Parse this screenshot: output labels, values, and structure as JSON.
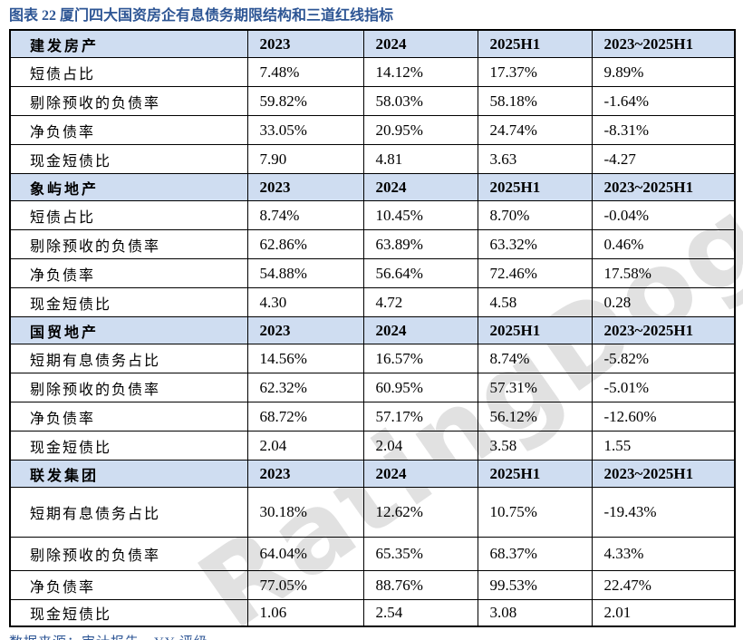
{
  "title": "图表 22 厦门四大国资房企有息债务期限结构和三道红线指标",
  "source_note": "数据来源：审计报告，YY 评级",
  "watermark": "RatingDog",
  "colors": {
    "title_blue": "#2e5695",
    "header_bg": "#cfddf1",
    "alert_red": "#ff0000",
    "border": "#000000",
    "watermark_gray": "#c9c9c9"
  },
  "table": {
    "year_columns": [
      "2023",
      "2024",
      "2025H1",
      "2023~2025H1"
    ],
    "sections": [
      {
        "company": "建发房产",
        "rows": [
          {
            "label": "短债占比",
            "values": [
              "7.48%",
              "14.12%",
              "17.37%",
              "9.89%"
            ],
            "red": []
          },
          {
            "label": "剔除预收的负债率",
            "values": [
              "59.82%",
              "58.03%",
              "58.18%",
              "-1.64%"
            ],
            "red": []
          },
          {
            "label": "净负债率",
            "values": [
              "33.05%",
              "20.95%",
              "24.74%",
              "-8.31%"
            ],
            "red": []
          },
          {
            "label": "现金短债比",
            "values": [
              "7.90",
              "4.81",
              "3.63",
              "-4.27"
            ],
            "red": []
          }
        ]
      },
      {
        "company": "象屿地产",
        "rows": [
          {
            "label": "短债占比",
            "values": [
              "8.74%",
              "10.45%",
              "8.70%",
              "-0.04%"
            ],
            "red": []
          },
          {
            "label": "剔除预收的负债率",
            "values": [
              "62.86%",
              "63.89%",
              "63.32%",
              "0.46%"
            ],
            "red": []
          },
          {
            "label": "净负债率",
            "values": [
              "54.88%",
              "56.64%",
              "72.46%",
              "17.58%"
            ],
            "red": [
              3
            ]
          },
          {
            "label": "现金短债比",
            "values": [
              "4.30",
              "4.72",
              "4.58",
              "0.28"
            ],
            "red": []
          }
        ]
      },
      {
        "company": "国贸地产",
        "rows": [
          {
            "label": "短期有息债务占比",
            "values": [
              "14.56%",
              "16.57%",
              "8.74%",
              "-5.82%"
            ],
            "red": []
          },
          {
            "label": "剔除预收的负债率",
            "values": [
              "62.32%",
              "60.95%",
              "57.31%",
              "-5.01%"
            ],
            "red": []
          },
          {
            "label": "净负债率",
            "values": [
              "68.72%",
              "57.17%",
              "56.12%",
              "-12.60%"
            ],
            "red": []
          },
          {
            "label": "现金短债比",
            "values": [
              "2.04",
              "2.04",
              "3.58",
              "1.55"
            ],
            "red": []
          }
        ]
      },
      {
        "company": "联发集团",
        "rows": [
          {
            "label": "短期有息债务占比",
            "values": [
              "30.18%",
              "12.62%",
              "10.75%",
              "-19.43%"
            ],
            "red": []
          },
          {
            "label": "剔除预收的负债率",
            "values": [
              "64.04%",
              "65.35%",
              "68.37%",
              "4.33%"
            ],
            "red": []
          },
          {
            "label": "净负债率",
            "values": [
              "77.05%",
              "88.76%",
              "99.53%",
              "22.47%"
            ],
            "red": [
              2,
              3
            ]
          },
          {
            "label": "现金短债比",
            "values": [
              "1.06",
              "2.54",
              "3.08",
              "2.01"
            ],
            "red": []
          }
        ]
      }
    ]
  }
}
